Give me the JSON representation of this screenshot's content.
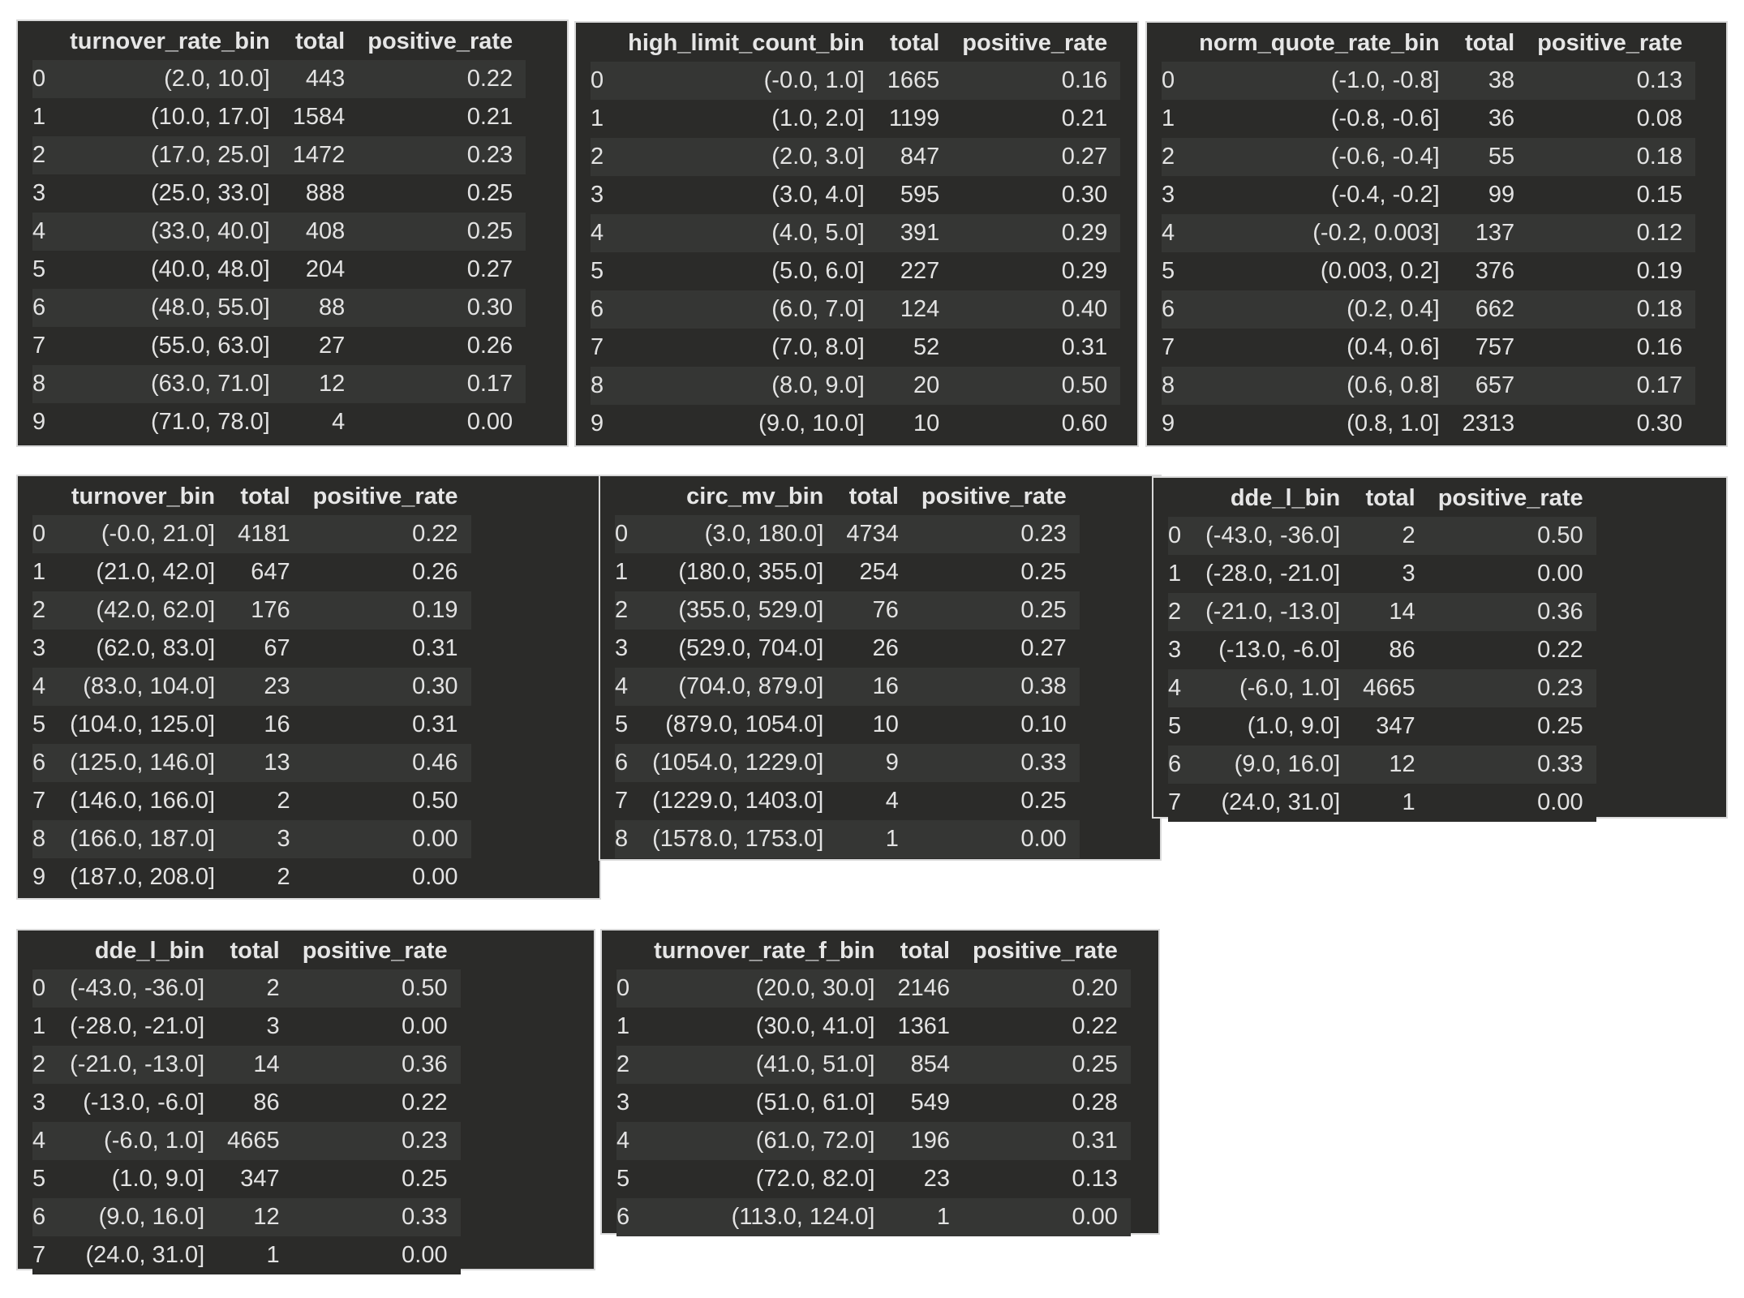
{
  "tables": [
    {
      "columns": [
        "turnover_rate_bin",
        "total",
        "positive_rate"
      ],
      "rows": [
        [
          "0",
          "(2.0, 10.0]",
          "443",
          "0.22"
        ],
        [
          "1",
          "(10.0, 17.0]",
          "1584",
          "0.21"
        ],
        [
          "2",
          "(17.0, 25.0]",
          "1472",
          "0.23"
        ],
        [
          "3",
          "(25.0, 33.0]",
          "888",
          "0.25"
        ],
        [
          "4",
          "(33.0, 40.0]",
          "408",
          "0.25"
        ],
        [
          "5",
          "(40.0, 48.0]",
          "204",
          "0.27"
        ],
        [
          "6",
          "(48.0, 55.0]",
          "88",
          "0.30"
        ],
        [
          "7",
          "(55.0, 63.0]",
          "27",
          "0.26"
        ],
        [
          "8",
          "(63.0, 71.0]",
          "12",
          "0.17"
        ],
        [
          "9",
          "(71.0, 78.0]",
          "4",
          "0.00"
        ]
      ]
    },
    {
      "columns": [
        "high_limit_count_bin",
        "total",
        "positive_rate"
      ],
      "rows": [
        [
          "0",
          "(-0.0, 1.0]",
          "1665",
          "0.16"
        ],
        [
          "1",
          "(1.0, 2.0]",
          "1199",
          "0.21"
        ],
        [
          "2",
          "(2.0, 3.0]",
          "847",
          "0.27"
        ],
        [
          "3",
          "(3.0, 4.0]",
          "595",
          "0.30"
        ],
        [
          "4",
          "(4.0, 5.0]",
          "391",
          "0.29"
        ],
        [
          "5",
          "(5.0, 6.0]",
          "227",
          "0.29"
        ],
        [
          "6",
          "(6.0, 7.0]",
          "124",
          "0.40"
        ],
        [
          "7",
          "(7.0, 8.0]",
          "52",
          "0.31"
        ],
        [
          "8",
          "(8.0, 9.0]",
          "20",
          "0.50"
        ],
        [
          "9",
          "(9.0, 10.0]",
          "10",
          "0.60"
        ]
      ]
    },
    {
      "columns": [
        "norm_quote_rate_bin",
        "total",
        "positive_rate"
      ],
      "rows": [
        [
          "0",
          "(-1.0, -0.8]",
          "38",
          "0.13"
        ],
        [
          "1",
          "(-0.8, -0.6]",
          "36",
          "0.08"
        ],
        [
          "2",
          "(-0.6, -0.4]",
          "55",
          "0.18"
        ],
        [
          "3",
          "(-0.4, -0.2]",
          "99",
          "0.15"
        ],
        [
          "4",
          "(-0.2, 0.003]",
          "137",
          "0.12"
        ],
        [
          "5",
          "(0.003, 0.2]",
          "376",
          "0.19"
        ],
        [
          "6",
          "(0.2, 0.4]",
          "662",
          "0.18"
        ],
        [
          "7",
          "(0.4, 0.6]",
          "757",
          "0.16"
        ],
        [
          "8",
          "(0.6, 0.8]",
          "657",
          "0.17"
        ],
        [
          "9",
          "(0.8, 1.0]",
          "2313",
          "0.30"
        ]
      ]
    },
    {
      "columns": [
        "turnover_bin",
        "total",
        "positive_rate"
      ],
      "rows": [
        [
          "0",
          "(-0.0, 21.0]",
          "4181",
          "0.22"
        ],
        [
          "1",
          "(21.0, 42.0]",
          "647",
          "0.26"
        ],
        [
          "2",
          "(42.0, 62.0]",
          "176",
          "0.19"
        ],
        [
          "3",
          "(62.0, 83.0]",
          "67",
          "0.31"
        ],
        [
          "4",
          "(83.0, 104.0]",
          "23",
          "0.30"
        ],
        [
          "5",
          "(104.0, 125.0]",
          "16",
          "0.31"
        ],
        [
          "6",
          "(125.0, 146.0]",
          "13",
          "0.46"
        ],
        [
          "7",
          "(146.0, 166.0]",
          "2",
          "0.50"
        ],
        [
          "8",
          "(166.0, 187.0]",
          "3",
          "0.00"
        ],
        [
          "9",
          "(187.0, 208.0]",
          "2",
          "0.00"
        ]
      ]
    },
    {
      "columns": [
        "circ_mv_bin",
        "total",
        "positive_rate"
      ],
      "rows": [
        [
          "0",
          "(3.0, 180.0]",
          "4734",
          "0.23"
        ],
        [
          "1",
          "(180.0, 355.0]",
          "254",
          "0.25"
        ],
        [
          "2",
          "(355.0, 529.0]",
          "76",
          "0.25"
        ],
        [
          "3",
          "(529.0, 704.0]",
          "26",
          "0.27"
        ],
        [
          "4",
          "(704.0, 879.0]",
          "16",
          "0.38"
        ],
        [
          "5",
          "(879.0, 1054.0]",
          "10",
          "0.10"
        ],
        [
          "6",
          "(1054.0, 1229.0]",
          "9",
          "0.33"
        ],
        [
          "7",
          "(1229.0, 1403.0]",
          "4",
          "0.25"
        ],
        [
          "8",
          "(1578.0, 1753.0]",
          "1",
          "0.00"
        ]
      ]
    },
    {
      "columns": [
        "dde_l_bin",
        "total",
        "positive_rate"
      ],
      "rows": [
        [
          "0",
          "(-43.0, -36.0]",
          "2",
          "0.50"
        ],
        [
          "1",
          "(-28.0, -21.0]",
          "3",
          "0.00"
        ],
        [
          "2",
          "(-21.0, -13.0]",
          "14",
          "0.36"
        ],
        [
          "3",
          "(-13.0, -6.0]",
          "86",
          "0.22"
        ],
        [
          "4",
          "(-6.0, 1.0]",
          "4665",
          "0.23"
        ],
        [
          "5",
          "(1.0, 9.0]",
          "347",
          "0.25"
        ],
        [
          "6",
          "(9.0, 16.0]",
          "12",
          "0.33"
        ],
        [
          "7",
          "(24.0, 31.0]",
          "1",
          "0.00"
        ]
      ]
    },
    {
      "columns": [
        "dde_l_bin",
        "total",
        "positive_rate"
      ],
      "rows": [
        [
          "0",
          "(-43.0, -36.0]",
          "2",
          "0.50"
        ],
        [
          "1",
          "(-28.0, -21.0]",
          "3",
          "0.00"
        ],
        [
          "2",
          "(-21.0, -13.0]",
          "14",
          "0.36"
        ],
        [
          "3",
          "(-13.0, -6.0]",
          "86",
          "0.22"
        ],
        [
          "4",
          "(-6.0, 1.0]",
          "4665",
          "0.23"
        ],
        [
          "5",
          "(1.0, 9.0]",
          "347",
          "0.25"
        ],
        [
          "6",
          "(9.0, 16.0]",
          "12",
          "0.33"
        ],
        [
          "7",
          "(24.0, 31.0]",
          "1",
          "0.00"
        ]
      ]
    },
    {
      "columns": [
        "turnover_rate_f_bin",
        "total",
        "positive_rate"
      ],
      "rows": [
        [
          "0",
          "(20.0, 30.0]",
          "2146",
          "0.20"
        ],
        [
          "1",
          "(30.0, 41.0]",
          "1361",
          "0.22"
        ],
        [
          "2",
          "(41.0, 51.0]",
          "854",
          "0.25"
        ],
        [
          "3",
          "(51.0, 61.0]",
          "549",
          "0.28"
        ],
        [
          "4",
          "(61.0, 72.0]",
          "196",
          "0.31"
        ],
        [
          "5",
          "(72.0, 82.0]",
          "23",
          "0.13"
        ],
        [
          "6",
          "(113.0, 124.0]",
          "1",
          "0.00"
        ]
      ]
    }
  ]
}
